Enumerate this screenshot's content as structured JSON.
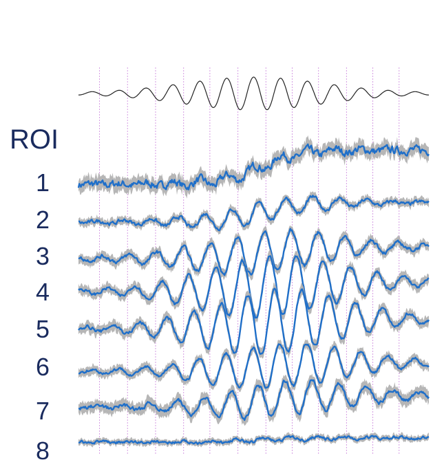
{
  "figure": {
    "roi_heading": "ROI",
    "colors": {
      "trace": "#1f6fc9",
      "error_band": "#a9a9a9",
      "stimulus": "#222222",
      "marker_lines": "#d59be3",
      "labels": "#1a2b5e"
    }
  },
  "chart_data": {
    "type": "line",
    "title": "",
    "xlabel": "",
    "ylabel": "",
    "grid": false,
    "legend": "none",
    "units": "normalized signal (arbitrary, 0 = baseline)",
    "stimulus": {
      "name": "",
      "description_values": "oscillating stimulus waveform, amplitude ramps up to a maximum near the middle then tapers",
      "cycles": 13,
      "peak_amplitude": 1.0
    },
    "marker_positions": [
      0.06,
      0.14,
      0.22,
      0.3,
      0.375,
      0.455,
      0.535,
      0.61,
      0.685,
      0.765,
      0.84,
      0.915
    ],
    "series": [
      {
        "label": "1",
        "baseline_offset": 0.0,
        "late_shift": 1.1,
        "oscillation_amplitude": 0.15,
        "noise": 0.22,
        "band": 0.22
      },
      {
        "label": "2",
        "baseline_offset": 0.0,
        "late_shift": 0.7,
        "oscillation_amplitude": 0.35,
        "noise": 0.12,
        "band": 0.14
      },
      {
        "label": "3",
        "baseline_offset": 0.0,
        "late_shift": 0.4,
        "oscillation_amplitude": 0.7,
        "noise": 0.12,
        "band": 0.16
      },
      {
        "label": "4",
        "baseline_offset": 0.0,
        "late_shift": 0.3,
        "oscillation_amplitude": 1.0,
        "noise": 0.1,
        "band": 0.16
      },
      {
        "label": "5",
        "baseline_offset": 0.0,
        "late_shift": 0.3,
        "oscillation_amplitude": 1.0,
        "noise": 0.1,
        "band": 0.16
      },
      {
        "label": "6",
        "baseline_offset": 0.0,
        "late_shift": 0.3,
        "oscillation_amplitude": 0.8,
        "noise": 0.1,
        "band": 0.16
      },
      {
        "label": "7",
        "baseline_offset": 0.0,
        "late_shift": 0.4,
        "oscillation_amplitude": 0.6,
        "noise": 0.12,
        "band": 0.2
      },
      {
        "label": "8",
        "baseline_offset": 0.0,
        "late_shift": 0.2,
        "oscillation_amplitude": 0.1,
        "noise": 0.12,
        "band": 0.14
      }
    ]
  }
}
